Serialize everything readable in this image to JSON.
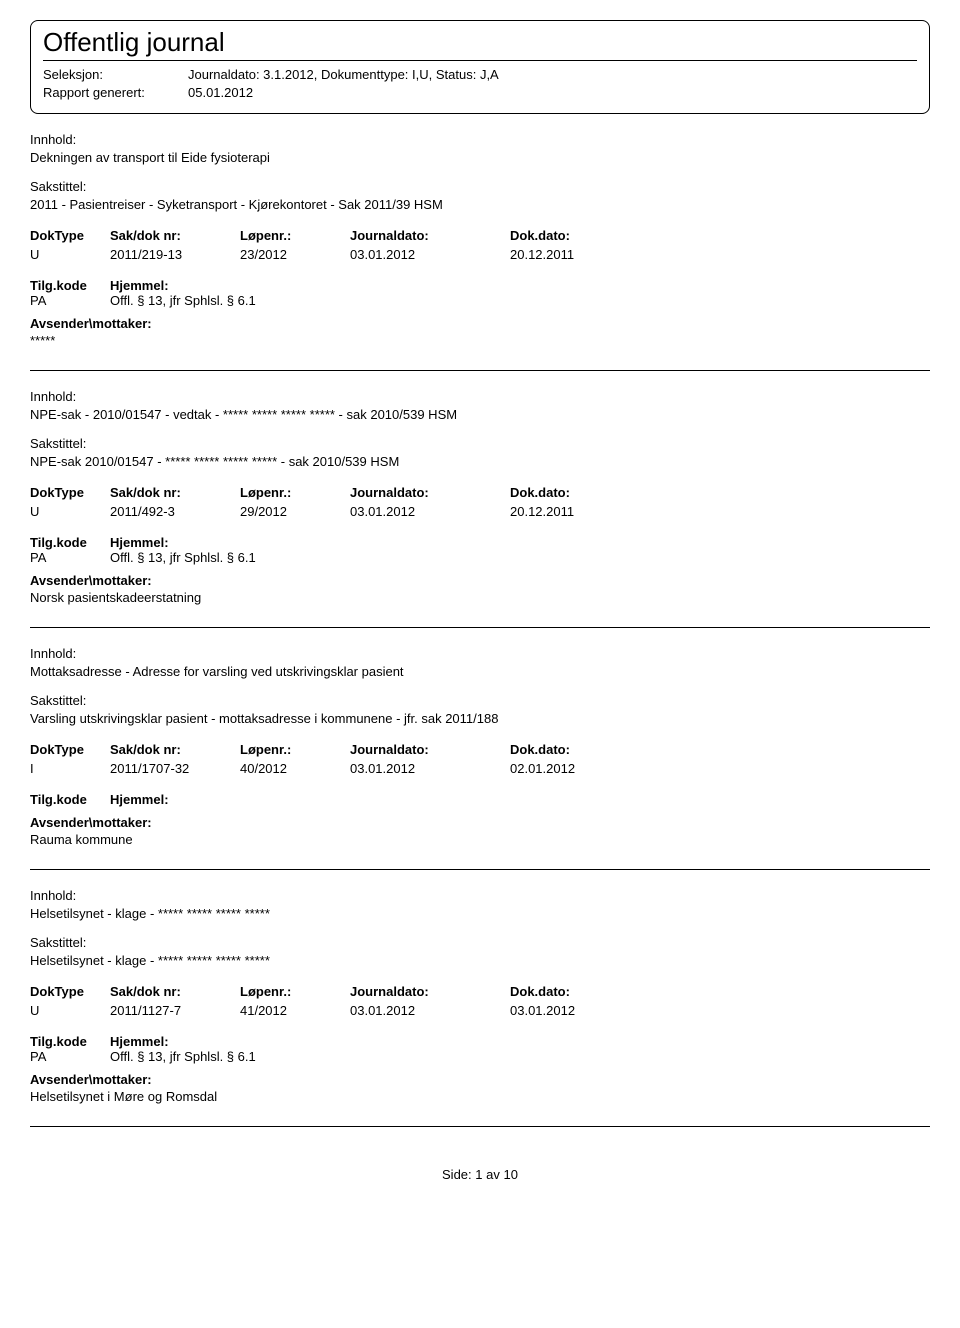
{
  "header": {
    "title": "Offentlig journal",
    "seleksjon_label": "Seleksjon:",
    "seleksjon_value": "Journaldato: 3.1.2012, Dokumenttype: I,U, Status: J,A",
    "rapport_label": "Rapport generert:",
    "rapport_value": "05.01.2012"
  },
  "labels": {
    "innhold": "Innhold:",
    "sakstittel": "Sakstittel:",
    "doktype": "DokType",
    "sakdok": "Sak/dok nr:",
    "lopenr": "Løpenr.:",
    "journaldato": "Journaldato:",
    "dokdato": "Dok.dato:",
    "tilgkode": "Tilg.kode",
    "hjemmel": "Hjemmel:",
    "avsender": "Avsender\\mottaker:"
  },
  "entries": [
    {
      "innhold": "Dekningen av transport til Eide fysioterapi",
      "sakstittel": "2011 - Pasientreiser - Syketransport - Kjørekontoret - Sak 2011/39  HSM",
      "doktype": "U",
      "sakdok": "2011/219-13",
      "lopenr": "23/2012",
      "journaldato": "03.01.2012",
      "dokdato": "20.12.2011",
      "tilgkode": "PA",
      "hjemmel": "Offl. § 13, jfr Sphlsl. § 6.1",
      "avsender": "*****"
    },
    {
      "innhold": "NPE-sak - 2010/01547 - vedtak - ***** ***** ***** ***** - sak 2010/539 HSM",
      "sakstittel": "NPE-sak  2010/01547 - ***** ***** ***** ***** - sak 2010/539 HSM",
      "doktype": "U",
      "sakdok": "2011/492-3",
      "lopenr": "29/2012",
      "journaldato": "03.01.2012",
      "dokdato": "20.12.2011",
      "tilgkode": "PA",
      "hjemmel": "Offl. § 13, jfr Sphlsl. § 6.1",
      "avsender": "Norsk pasientskadeerstatning"
    },
    {
      "innhold": "Mottaksadresse - Adresse for varsling ved utskrivingsklar pasient",
      "sakstittel": "Varsling utskrivingsklar pasient - mottaksadresse i kommunene - jfr. sak 2011/188",
      "doktype": "I",
      "sakdok": "2011/1707-32",
      "lopenr": "40/2012",
      "journaldato": "03.01.2012",
      "dokdato": "02.01.2012",
      "tilgkode": "",
      "hjemmel": "",
      "avsender": "Rauma kommune"
    },
    {
      "innhold": "Helsetilsynet - klage - ***** ***** ***** *****",
      "sakstittel": "Helsetilsynet - klage - ***** ***** ***** *****",
      "doktype": "U",
      "sakdok": "2011/1127-7",
      "lopenr": "41/2012",
      "journaldato": "03.01.2012",
      "dokdato": "03.01.2012",
      "tilgkode": "PA",
      "hjemmel": "Offl. § 13, jfr Sphlsl. § 6.1",
      "avsender": "Helsetilsynet i Møre og Romsdal"
    }
  ],
  "footer": {
    "side_label": "Side:",
    "page_current": "1",
    "page_sep": "av",
    "page_total": "10"
  }
}
